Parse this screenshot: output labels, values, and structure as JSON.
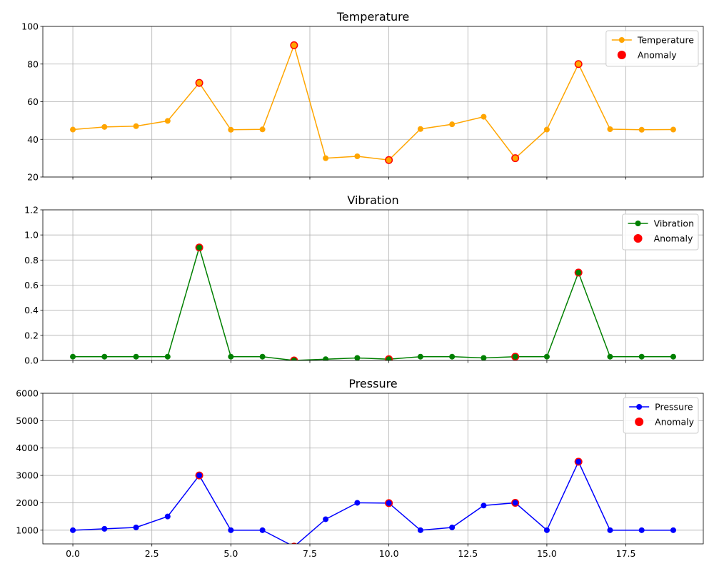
{
  "chart_data": [
    {
      "type": "line",
      "title": "Temperature",
      "x": [
        0,
        1,
        2,
        3,
        4,
        5,
        6,
        7,
        8,
        9,
        10,
        11,
        12,
        13,
        14,
        15,
        16,
        17,
        18,
        19
      ],
      "series": [
        {
          "name": "Temperature",
          "color": "#ffa500",
          "values": [
            45.2,
            46.6,
            47,
            49.8,
            70,
            45.1,
            45.3,
            90,
            30,
            31,
            29,
            45.5,
            48,
            52,
            30,
            45.2,
            80,
            45.4,
            45.1,
            45.2
          ]
        }
      ],
      "anomalies": {
        "name": "Anomaly",
        "color": "#ff0000",
        "x": [
          4,
          7,
          10,
          14,
          16
        ],
        "values": [
          70,
          90,
          29,
          30,
          80
        ]
      },
      "xlim": [
        -0.95,
        19.95
      ],
      "ylim": [
        20,
        100
      ],
      "yticks": [
        20,
        40,
        60,
        80,
        100
      ],
      "ytick_labels": [
        "20",
        "40",
        "60",
        "80",
        "100"
      ],
      "grid": true,
      "legend": "top-right"
    },
    {
      "type": "line",
      "title": "Vibration",
      "x": [
        0,
        1,
        2,
        3,
        4,
        5,
        6,
        7,
        8,
        9,
        10,
        11,
        12,
        13,
        14,
        15,
        16,
        17,
        18,
        19
      ],
      "series": [
        {
          "name": "Vibration",
          "color": "#008000",
          "values": [
            0.03,
            0.03,
            0.03,
            0.03,
            0.9,
            0.03,
            0.03,
            0.0,
            0.01,
            0.02,
            0.01,
            0.03,
            0.03,
            0.02,
            0.03,
            0.03,
            0.7,
            0.03,
            0.03,
            0.03
          ]
        }
      ],
      "anomalies": {
        "name": "Anomaly",
        "color": "#ff0000",
        "x": [
          4,
          7,
          10,
          14,
          16
        ],
        "values": [
          0.9,
          0.0,
          0.01,
          0.03,
          0.7
        ]
      },
      "xlim": [
        -0.95,
        19.95
      ],
      "ylim": [
        0,
        1.2
      ],
      "yticks": [
        0,
        0.2,
        0.4,
        0.6,
        0.8,
        1.0,
        1.2
      ],
      "ytick_labels": [
        "0.0",
        "0.2",
        "0.4",
        "0.6",
        "0.8",
        "1.0",
        "1.2"
      ],
      "grid": true,
      "legend": "top-right"
    },
    {
      "type": "line",
      "title": "Pressure",
      "x": [
        0,
        1,
        2,
        3,
        4,
        5,
        6,
        7,
        8,
        9,
        10,
        11,
        12,
        13,
        14,
        15,
        16,
        17,
        18,
        19
      ],
      "series": [
        {
          "name": "Pressure",
          "color": "#0000ff",
          "values": [
            1000,
            1050,
            1100,
            1500,
            3000,
            1000,
            1000,
            400,
            1400,
            2000,
            1990,
            1000,
            1100,
            1900,
            2000,
            1000,
            3500,
            1000,
            1000,
            1000
          ]
        }
      ],
      "anomalies": {
        "name": "Anomaly",
        "color": "#ff0000",
        "x": [
          4,
          7,
          10,
          14,
          16
        ],
        "values": [
          3000,
          400,
          1990,
          2000,
          3500
        ]
      },
      "xlim": [
        -0.95,
        19.95
      ],
      "ylim": [
        500,
        6000
      ],
      "yticks": [
        1000,
        2000,
        3000,
        4000,
        5000,
        6000
      ],
      "ytick_labels": [
        "1000",
        "2000",
        "3000",
        "4000",
        "5000",
        "6000"
      ],
      "xticks": [
        0,
        2.5,
        5,
        7.5,
        10,
        12.5,
        15,
        17.5
      ],
      "xtick_labels": [
        "0.0",
        "2.5",
        "5.0",
        "7.5",
        "10.0",
        "12.5",
        "15.0",
        "17.5"
      ],
      "grid": true,
      "legend": "top-right"
    }
  ]
}
